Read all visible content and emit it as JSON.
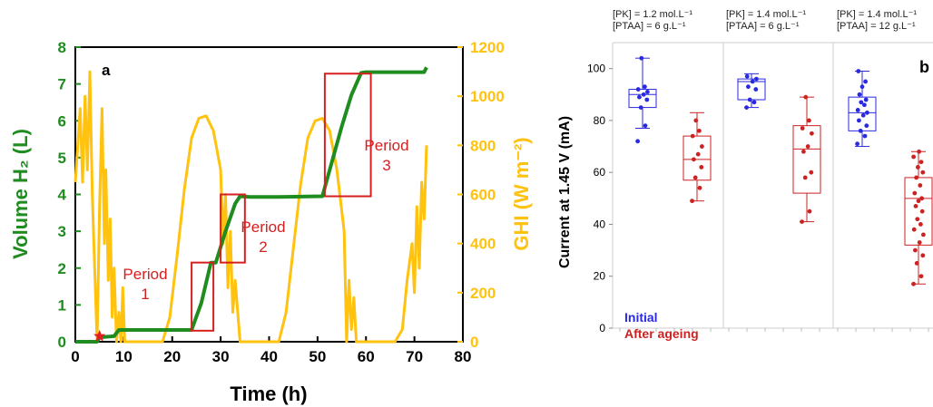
{
  "chart_data": [
    {
      "type": "line",
      "panel_label": "a",
      "xlabel": "Time (h)",
      "ylabel_left": "Volume H₂ (L)",
      "ylabel_right": "GHI (W m⁻²)",
      "xlim": [
        0,
        80
      ],
      "ylim_left": [
        0,
        8
      ],
      "ylim_right": [
        0,
        1200
      ],
      "x_ticks": [
        "0",
        "10",
        "20",
        "30",
        "40",
        "50",
        "60",
        "70",
        "80"
      ],
      "y_ticks_left": [
        "0",
        "1",
        "2",
        "3",
        "4",
        "5",
        "6",
        "7",
        "8"
      ],
      "y_ticks_right": [
        "0",
        "200",
        "400",
        "600",
        "800",
        "1000",
        "1200"
      ],
      "colors": {
        "volume": "#1e8c1e",
        "ghi": "#ffc20e",
        "period": "#d61f1f",
        "marker": "#e02020"
      },
      "series": [
        {
          "axis": "left",
          "x": [
            0,
            4.5,
            5,
            8,
            9,
            24,
            26,
            28,
            29,
            31,
            33,
            34,
            36,
            42,
            51,
            53,
            55,
            57,
            59,
            60,
            70,
            72,
            72.5
          ],
          "values": [
            0,
            0,
            0.12,
            0.15,
            0.32,
            0.32,
            1.05,
            2.15,
            2.15,
            3.0,
            3.75,
            3.95,
            3.93,
            3.93,
            3.95,
            4.9,
            5.85,
            6.7,
            7.3,
            7.32,
            7.32,
            7.32,
            7.45
          ]
        },
        {
          "axis": "right",
          "x": [
            0,
            0.5,
            1,
            1.5,
            2,
            2.5,
            3,
            3.5,
            4,
            4.5,
            5,
            5.5,
            6,
            6.3,
            6.8,
            7.2,
            7.6,
            8,
            8.5,
            9,
            9.4,
            9.8,
            10.2,
            11,
            12,
            18,
            19.5,
            21,
            22.5,
            24,
            25.5,
            27,
            28.5,
            30,
            30.5,
            31,
            31.5,
            32,
            32.5,
            33,
            34,
            36,
            42,
            43.5,
            45,
            46.5,
            48,
            49.5,
            51,
            52.5,
            54,
            55.5,
            56,
            56.5,
            57,
            57.5,
            58,
            59,
            60,
            66,
            67.5,
            68.5,
            69.5,
            70,
            70.5,
            71,
            71.5,
            72,
            72.5
          ],
          "values": [
            650,
            800,
            950,
            650,
            1000,
            700,
            1100,
            600,
            300,
            0,
            550,
            950,
            400,
            700,
            250,
            500,
            100,
            300,
            0,
            120,
            0,
            220,
            0,
            0,
            0,
            0,
            100,
            350,
            620,
            830,
            910,
            920,
            860,
            700,
            400,
            600,
            220,
            450,
            120,
            250,
            0,
            0,
            0,
            120,
            380,
            640,
            830,
            900,
            910,
            860,
            700,
            450,
            0,
            250,
            50,
            180,
            0,
            0,
            0,
            0,
            50,
            250,
            400,
            200,
            550,
            300,
            650,
            500,
            800
          ]
        }
      ],
      "periods": [
        {
          "label": "Period\n1",
          "x_range": [
            24,
            28.5
          ],
          "y_range": [
            0.3,
            2.15
          ]
        },
        {
          "label": "Period\n2",
          "x_range": [
            30,
            35
          ],
          "y_range": [
            2.15,
            4.0
          ]
        },
        {
          "label": "Period\n3",
          "x_range": [
            51.5,
            61
          ],
          "y_range": [
            3.95,
            7.28
          ]
        }
      ],
      "marker": {
        "shape": "star",
        "x": 5,
        "y": 0.15
      }
    },
    {
      "type": "box",
      "panel_label": "b",
      "ylabel": "Current at 1.45 V (mA)",
      "ylim": [
        0,
        110
      ],
      "y_ticks": [
        "0",
        "20",
        "40",
        "60",
        "80",
        "100"
      ],
      "legend": [
        "Initial",
        "After ageing"
      ],
      "colors": {
        "initial": "#2a2ae0",
        "after": "#cc2222"
      },
      "groups": [
        {
          "condition": [
            "[PK] = 1.2 mol.L⁻¹",
            "[PTAA] = 6 g.L⁻¹"
          ],
          "initial": {
            "min": 77,
            "q1": 85,
            "median": 90,
            "q3": 92,
            "max": 104,
            "points": [
              72,
              78,
              85,
              88,
              89,
              90,
              91,
              92,
              93,
              104
            ]
          },
          "after": {
            "min": 49,
            "q1": 57,
            "median": 65,
            "q3": 74,
            "max": 83,
            "points": [
              49,
              54,
              58,
              62,
              65,
              67,
              70,
              74,
              76,
              80
            ]
          }
        },
        {
          "condition": [
            "[PK] = 1.4 mol.L⁻¹",
            "[PTAA] = 6 g.L⁻¹"
          ],
          "initial": {
            "min": 85,
            "q1": 88,
            "median": 95,
            "q3": 96,
            "max": 98,
            "points": [
              85,
              87,
              88,
              92,
              93,
              95,
              96,
              97
            ]
          },
          "after": {
            "min": 41,
            "q1": 52,
            "median": 69,
            "q3": 78,
            "max": 89,
            "points": [
              41,
              45,
              58,
              60,
              68,
              70,
              75,
              77,
              80,
              89
            ]
          }
        },
        {
          "condition": [
            "[PK] = 1.4 mol.L⁻¹",
            "[PTAA] = 12 g.L⁻¹"
          ],
          "initial": {
            "min": 70,
            "q1": 76,
            "median": 83,
            "q3": 89,
            "max": 99,
            "points": [
              71,
              74,
              76,
              78,
              80,
              82,
              83,
              84,
              86,
              87,
              88,
              90,
              93,
              95,
              99
            ]
          },
          "after": {
            "min": 17,
            "q1": 32,
            "median": 50,
            "q3": 58,
            "max": 68,
            "points": [
              17,
              20,
              25,
              28,
              30,
              33,
              36,
              38,
              40,
              42,
              45,
              47,
              49,
              50,
              52,
              55,
              58,
              60,
              62,
              64,
              66,
              68
            ]
          }
        }
      ]
    }
  ]
}
